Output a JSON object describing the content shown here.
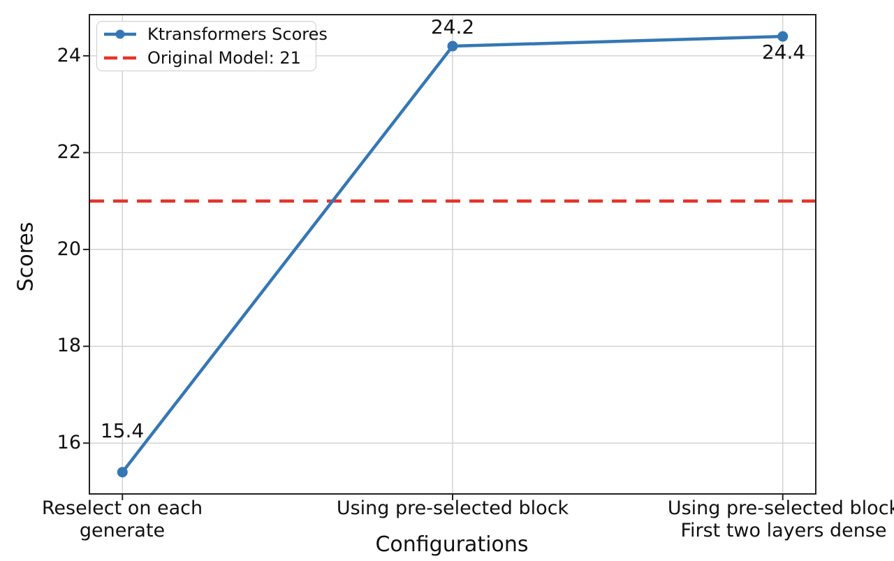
{
  "figure": {
    "background": "#ffffff",
    "grid_color": "#cccccc",
    "spine_color": "#222222",
    "text_color": "#111111"
  },
  "chart_data": {
    "type": "line",
    "title": "",
    "xlabel": "Configurations",
    "ylabel": "Scores",
    "categories": [
      "Reselect on each generate",
      "Using pre-selected block",
      "Using pre-selected block\nFirst two layers dense"
    ],
    "series": [
      {
        "name": "Ktransformers Scores",
        "values": [
          15.4,
          24.2,
          24.4
        ],
        "color": "#3577b4",
        "marker": "circle",
        "line_style": "solid"
      }
    ],
    "reference_line": {
      "label": "Original Model: 21",
      "value": 21,
      "color": "#e5342a",
      "style": "dashed"
    },
    "point_labels": [
      "15.4",
      "24.2",
      "24.4"
    ],
    "yticks": [
      16,
      18,
      20,
      22,
      24
    ],
    "ylim": [
      14.95,
      24.85
    ],
    "xlim": [
      -0.1,
      2.1
    ],
    "grid": true,
    "legend_position": "upper left"
  }
}
